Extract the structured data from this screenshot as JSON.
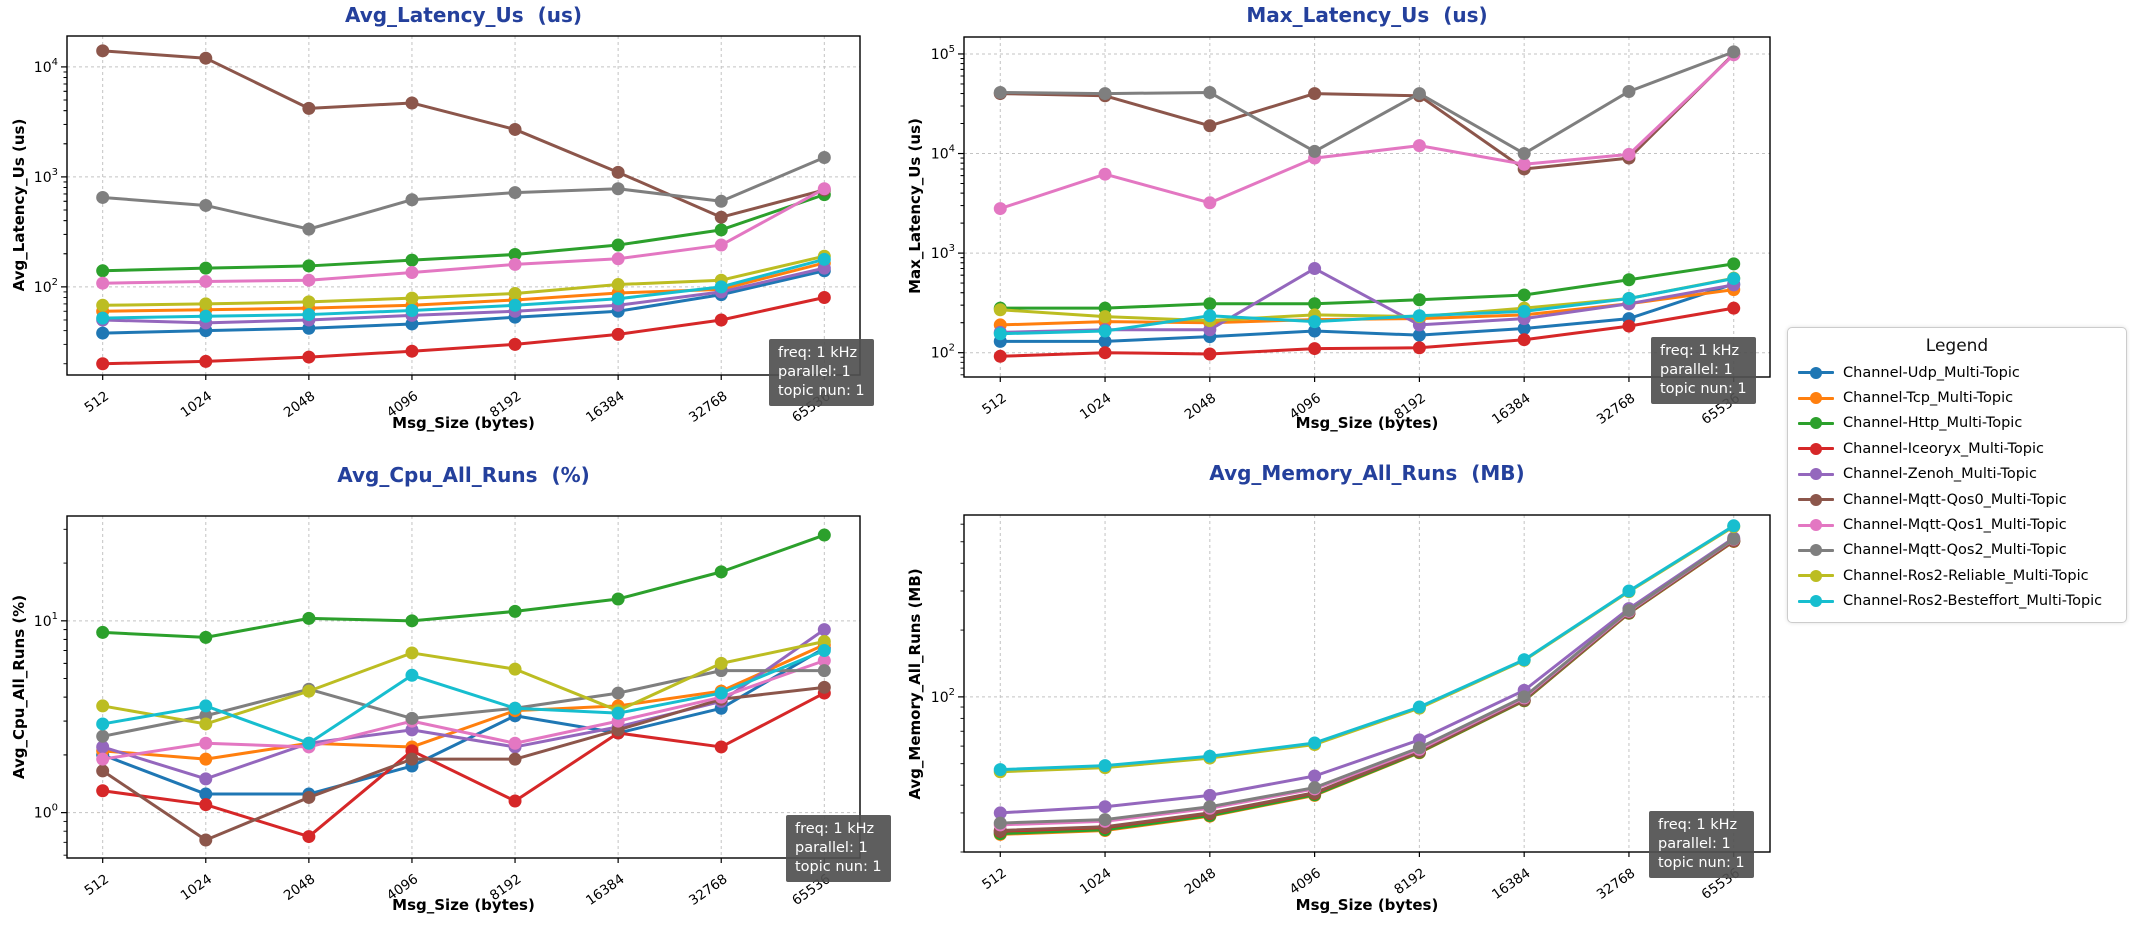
{
  "colors": {
    "title": "#24409c",
    "grid": "#c3c3c3",
    "axis": "#000000",
    "annotation_bg": "#505050",
    "annotation_text": "#ffffff"
  },
  "annotation": {
    "lines": [
      "freq: 1 kHz",
      "parallel: 1",
      "topic nun: 1"
    ]
  },
  "legend": {
    "title": "Legend",
    "entries": [
      {
        "label": "Channel-Udp_Multi-Topic",
        "color": "#1f77b4"
      },
      {
        "label": "Channel-Tcp_Multi-Topic",
        "color": "#ff7f0e"
      },
      {
        "label": "Channel-Http_Multi-Topic",
        "color": "#2ca02c"
      },
      {
        "label": "Channel-Iceoryx_Multi-Topic",
        "color": "#d62728"
      },
      {
        "label": "Channel-Zenoh_Multi-Topic",
        "color": "#9467bd"
      },
      {
        "label": "Channel-Mqtt-Qos0_Multi-Topic",
        "color": "#8c564b"
      },
      {
        "label": "Channel-Mqtt-Qos1_Multi-Topic",
        "color": "#e377c2"
      },
      {
        "label": "Channel-Mqtt-Qos2_Multi-Topic",
        "color": "#7f7f7f"
      },
      {
        "label": "Channel-Ros2-Reliable_Multi-Topic",
        "color": "#bcbd22"
      },
      {
        "label": "Channel-Ros2-Besteffort_Multi-Topic",
        "color": "#17becf"
      }
    ]
  },
  "chart_data": [
    {
      "id": "avg_latency",
      "type": "line",
      "title": "Avg_Latency_Us  (us)",
      "ylabel": "Avg_Latency_Us (us)",
      "xlabel": "Msg_Size (bytes)",
      "log_y": true,
      "grid": true,
      "categories": [
        512,
        1024,
        2048,
        4096,
        8192,
        16384,
        32768,
        65536
      ],
      "ylim": [
        15.8,
        19100
      ],
      "ytick_exponents": [
        2,
        3,
        4
      ],
      "series": [
        {
          "name": "Channel-Udp_Multi-Topic",
          "color": "#1f77b4",
          "values": [
            38,
            40,
            42,
            46,
            53,
            60,
            85,
            140
          ]
        },
        {
          "name": "Channel-Tcp_Multi-Topic",
          "color": "#ff7f0e",
          "values": [
            60,
            62,
            64,
            68,
            76,
            88,
            95,
            165
          ]
        },
        {
          "name": "Channel-Http_Multi-Topic",
          "color": "#2ca02c",
          "values": [
            140,
            148,
            155,
            175,
            197,
            240,
            330,
            690
          ]
        },
        {
          "name": "Channel-Iceoryx_Multi-Topic",
          "color": "#d62728",
          "values": [
            20,
            21,
            23,
            26,
            30,
            37,
            50,
            80
          ]
        },
        {
          "name": "Channel-Zenoh_Multi-Topic",
          "color": "#9467bd",
          "values": [
            50,
            47,
            50,
            55,
            60,
            68,
            90,
            148
          ]
        },
        {
          "name": "Channel-Mqtt-Qos0_Multi-Topic",
          "color": "#8c564b",
          "values": [
            14000,
            12000,
            4200,
            4700,
            2700,
            1100,
            430,
            760
          ]
        },
        {
          "name": "Channel-Mqtt-Qos1_Multi-Topic",
          "color": "#e377c2",
          "values": [
            108,
            112,
            115,
            135,
            160,
            180,
            240,
            780
          ]
        },
        {
          "name": "Channel-Mqtt-Qos2_Multi-Topic",
          "color": "#7f7f7f",
          "values": [
            650,
            550,
            335,
            620,
            720,
            780,
            600,
            1500
          ]
        },
        {
          "name": "Channel-Ros2-Reliable_Multi-Topic",
          "color": "#bcbd22",
          "values": [
            68,
            70,
            73,
            79,
            87,
            105,
            115,
            190
          ]
        },
        {
          "name": "Channel-Ros2-Besteffort_Multi-Topic",
          "color": "#17becf",
          "values": [
            52,
            54,
            56,
            61,
            68,
            78,
            100,
            178
          ]
        }
      ]
    },
    {
      "id": "max_latency",
      "type": "line",
      "title": "Max_Latency_Us  (us)",
      "ylabel": "Max_Latency_Us (us)",
      "xlabel": "Msg_Size (bytes)",
      "log_y": true,
      "grid": true,
      "categories": [
        512,
        1024,
        2048,
        4096,
        8192,
        16384,
        32768,
        65536
      ],
      "ylim": [
        57,
        148000
      ],
      "ytick_exponents": [
        2,
        3,
        4,
        5
      ],
      "series": [
        {
          "name": "Channel-Udp_Multi-Topic",
          "color": "#1f77b4",
          "values": [
            130,
            130,
            145,
            165,
            150,
            175,
            220,
            490
          ]
        },
        {
          "name": "Channel-Tcp_Multi-Topic",
          "color": "#ff7f0e",
          "values": [
            190,
            205,
            200,
            215,
            220,
            240,
            310,
            430
          ]
        },
        {
          "name": "Channel-Http_Multi-Topic",
          "color": "#2ca02c",
          "values": [
            280,
            280,
            310,
            310,
            340,
            380,
            540,
            780
          ]
        },
        {
          "name": "Channel-Iceoryx_Multi-Topic",
          "color": "#d62728",
          "values": [
            92,
            100,
            97,
            110,
            112,
            135,
            185,
            280
          ]
        },
        {
          "name": "Channel-Zenoh_Multi-Topic",
          "color": "#9467bd",
          "values": [
            160,
            170,
            170,
            700,
            190,
            220,
            310,
            480
          ]
        },
        {
          "name": "Channel-Mqtt-Qos0_Multi-Topic",
          "color": "#8c564b",
          "values": [
            40000,
            38000,
            19000,
            40000,
            38000,
            7000,
            9000,
            100000
          ]
        },
        {
          "name": "Channel-Mqtt-Qos1_Multi-Topic",
          "color": "#e377c2",
          "values": [
            2800,
            6200,
            3200,
            9000,
            12000,
            7800,
            9800,
            98000
          ]
        },
        {
          "name": "Channel-Mqtt-Qos2_Multi-Topic",
          "color": "#7f7f7f",
          "values": [
            41000,
            40000,
            41000,
            10500,
            40000,
            10000,
            42000,
            105000
          ]
        },
        {
          "name": "Channel-Ros2-Reliable_Multi-Topic",
          "color": "#bcbd22",
          "values": [
            270,
            230,
            210,
            240,
            230,
            280,
            350,
            560
          ]
        },
        {
          "name": "Channel-Ros2-Besteffort_Multi-Topic",
          "color": "#17becf",
          "values": [
            155,
            165,
            235,
            205,
            235,
            260,
            350,
            555
          ]
        }
      ]
    },
    {
      "id": "avg_cpu",
      "type": "line",
      "title": "Avg_Cpu_All_Runs  (%)",
      "ylabel": "Avg_Cpu_All_Runs (%)",
      "xlabel": "Msg_Size (bytes)",
      "log_y": true,
      "grid": true,
      "categories": [
        512,
        1024,
        2048,
        4096,
        8192,
        16384,
        32768,
        65536
      ],
      "ylim": [
        0.58,
        35.2
      ],
      "ytick_exponents": [
        0,
        1
      ],
      "series": [
        {
          "name": "Channel-Udp_Multi-Topic",
          "color": "#1f77b4",
          "values": [
            2.0,
            1.25,
            1.25,
            1.75,
            3.2,
            2.6,
            3.5,
            7.2
          ]
        },
        {
          "name": "Channel-Tcp_Multi-Topic",
          "color": "#ff7f0e",
          "values": [
            2.1,
            1.9,
            2.3,
            2.2,
            3.4,
            3.6,
            4.3,
            7.5
          ]
        },
        {
          "name": "Channel-Http_Multi-Topic",
          "color": "#2ca02c",
          "values": [
            8.7,
            8.2,
            10.3,
            10.0,
            11.2,
            13.0,
            18.0,
            28.0
          ]
        },
        {
          "name": "Channel-Iceoryx_Multi-Topic",
          "color": "#d62728",
          "values": [
            1.3,
            1.1,
            0.75,
            2.1,
            1.15,
            2.6,
            2.2,
            4.2
          ]
        },
        {
          "name": "Channel-Zenoh_Multi-Topic",
          "color": "#9467bd",
          "values": [
            2.2,
            1.5,
            2.3,
            2.7,
            2.2,
            2.8,
            3.8,
            9.0
          ]
        },
        {
          "name": "Channel-Mqtt-Qos0_Multi-Topic",
          "color": "#8c564b",
          "values": [
            1.65,
            0.72,
            1.2,
            1.9,
            1.9,
            2.7,
            3.9,
            4.5
          ]
        },
        {
          "name": "Channel-Mqtt-Qos1_Multi-Topic",
          "color": "#e377c2",
          "values": [
            1.9,
            2.3,
            2.2,
            3.0,
            2.3,
            3.0,
            4.0,
            6.2
          ]
        },
        {
          "name": "Channel-Mqtt-Qos2_Multi-Topic",
          "color": "#7f7f7f",
          "values": [
            2.5,
            3.2,
            4.4,
            3.1,
            3.5,
            4.2,
            5.5,
            5.5
          ]
        },
        {
          "name": "Channel-Ros2-Reliable_Multi-Topic",
          "color": "#bcbd22",
          "values": [
            3.6,
            2.9,
            4.3,
            6.8,
            5.6,
            3.4,
            6.0,
            7.8
          ]
        },
        {
          "name": "Channel-Ros2-Besteffort_Multi-Topic",
          "color": "#17becf",
          "values": [
            2.9,
            3.6,
            2.3,
            5.2,
            3.5,
            3.3,
            4.2,
            7.0
          ]
        }
      ]
    },
    {
      "id": "avg_memory",
      "type": "line",
      "title": "Avg_Memory_All_Runs  (MB)",
      "ylabel": "Avg_Memory_All_Runs (MB)",
      "xlabel": "Msg_Size (bytes)",
      "log_y": true,
      "grid": true,
      "categories": [
        512,
        1024,
        2048,
        4096,
        8192,
        16384,
        32768,
        65536
      ],
      "ylim": [
        20,
        660
      ],
      "ytick_exponents": [
        2
      ],
      "series": [
        {
          "name": "Channel-Udp_Multi-Topic",
          "color": "#1f77b4",
          "values": [
            24.5,
            25.5,
            29.5,
            36.5,
            56.5,
            96.5,
            239,
            503
          ]
        },
        {
          "name": "Channel-Tcp_Multi-Topic",
          "color": "#ff7f0e",
          "values": [
            24,
            25,
            29,
            36,
            56,
            96,
            238,
            502
          ]
        },
        {
          "name": "Channel-Http_Multi-Topic",
          "color": "#2ca02c",
          "values": [
            24.2,
            25.2,
            29.2,
            36.2,
            56.2,
            96.2,
            238.5,
            502.5
          ]
        },
        {
          "name": "Channel-Iceoryx_Multi-Topic",
          "color": "#d62728",
          "values": [
            24.8,
            25.8,
            29.8,
            36.8,
            56.8,
            96.8,
            239.5,
            504
          ]
        },
        {
          "name": "Channel-Zenoh_Multi-Topic",
          "color": "#9467bd",
          "values": [
            30,
            32,
            36,
            44,
            64,
            107,
            250,
            520
          ]
        },
        {
          "name": "Channel-Mqtt-Qos0_Multi-Topic",
          "color": "#8c564b",
          "values": [
            25,
            26,
            30,
            37,
            57,
            97,
            240,
            506
          ]
        },
        {
          "name": "Channel-Mqtt-Qos1_Multi-Topic",
          "color": "#e377c2",
          "values": [
            26.5,
            27.5,
            31.5,
            38.5,
            58,
            99,
            243,
            513
          ]
        },
        {
          "name": "Channel-Mqtt-Qos2_Multi-Topic",
          "color": "#7f7f7f",
          "values": [
            27,
            28,
            32,
            39,
            59,
            100,
            245,
            515
          ]
        },
        {
          "name": "Channel-Ros2-Reliable_Multi-Topic",
          "color": "#bcbd22",
          "values": [
            46,
            48,
            53,
            61,
            89,
            146,
            298,
            585
          ]
        },
        {
          "name": "Channel-Ros2-Besteffort_Multi-Topic",
          "color": "#17becf",
          "values": [
            47,
            49,
            54,
            62,
            90,
            147,
            300,
            590
          ]
        }
      ]
    }
  ]
}
